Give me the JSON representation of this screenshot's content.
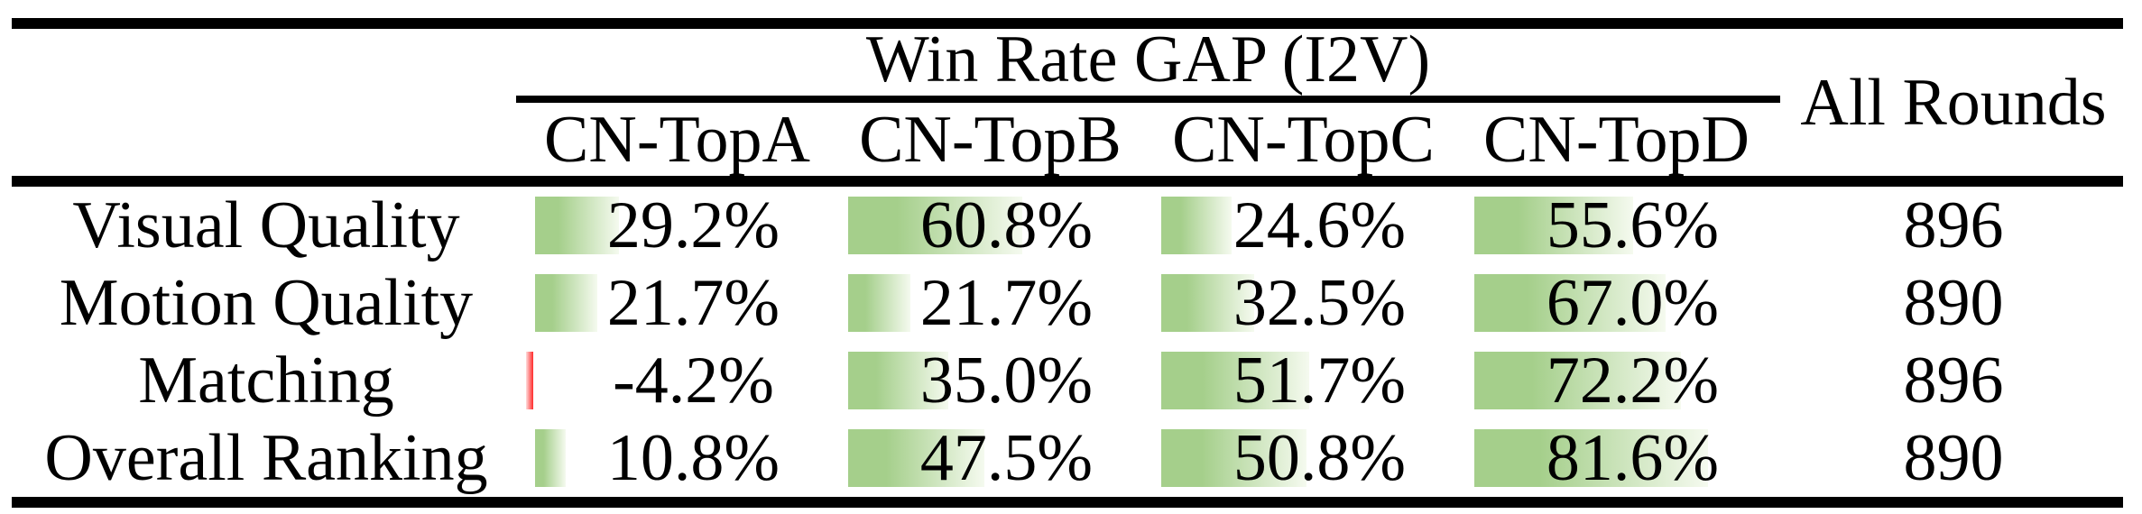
{
  "table": {
    "group_header": "Win Rate GAP (I2V)",
    "all_rounds_header": "All Rounds",
    "columns": [
      "CN-TopA",
      "CN-TopB",
      "CN-TopC",
      "CN-TopD"
    ],
    "rows": [
      {
        "label": "Visual Quality",
        "cells": [
          {
            "text": "29.2%",
            "pct": 29.2
          },
          {
            "text": "60.8%",
            "pct": 60.8
          },
          {
            "text": "24.6%",
            "pct": 24.6
          },
          {
            "text": "55.6%",
            "pct": 55.6
          }
        ],
        "rounds": "896"
      },
      {
        "label": "Motion Quality",
        "cells": [
          {
            "text": "21.7%",
            "pct": 21.7
          },
          {
            "text": "21.7%",
            "pct": 21.7
          },
          {
            "text": "32.5%",
            "pct": 32.5
          },
          {
            "text": "67.0%",
            "pct": 67.0
          }
        ],
        "rounds": "890"
      },
      {
        "label": "Matching",
        "cells": [
          {
            "text": "-4.2%",
            "pct": -4.2
          },
          {
            "text": "35.0%",
            "pct": 35.0
          },
          {
            "text": "51.7%",
            "pct": 51.7
          },
          {
            "text": "72.2%",
            "pct": 72.2
          }
        ],
        "rounds": "896"
      },
      {
        "label": "Overall Ranking",
        "cells": [
          {
            "text": "10.8%",
            "pct": 10.8
          },
          {
            "text": "47.5%",
            "pct": 47.5
          },
          {
            "text": "50.8%",
            "pct": 50.8
          },
          {
            "text": "81.6%",
            "pct": 81.6
          }
        ],
        "rounds": "890"
      }
    ],
    "colors": {
      "bar_positive": "#a5cf8b",
      "bar_positive_fade": "#f5faef",
      "bar_negative": "#ff2b2b",
      "bar_negative_fade": "#ffdcdc",
      "rule": "#000000"
    }
  },
  "chart_data": {
    "type": "table",
    "title": "Win Rate GAP (I2V)",
    "categories": [
      "Visual Quality",
      "Motion Quality",
      "Matching",
      "Overall Ranking"
    ],
    "series": [
      {
        "name": "CN-TopA",
        "values": [
          29.2,
          21.7,
          -4.2,
          10.8
        ]
      },
      {
        "name": "CN-TopB",
        "values": [
          60.8,
          21.7,
          35.0,
          47.5
        ]
      },
      {
        "name": "CN-TopC",
        "values": [
          24.6,
          32.5,
          51.7,
          50.8
        ]
      },
      {
        "name": "CN-TopD",
        "values": [
          55.6,
          67.0,
          72.2,
          81.6
        ]
      }
    ],
    "all_rounds": [
      896,
      890,
      896,
      890
    ],
    "value_unit": "%",
    "bar_style": "in-cell data bars, green positive / red negative"
  }
}
